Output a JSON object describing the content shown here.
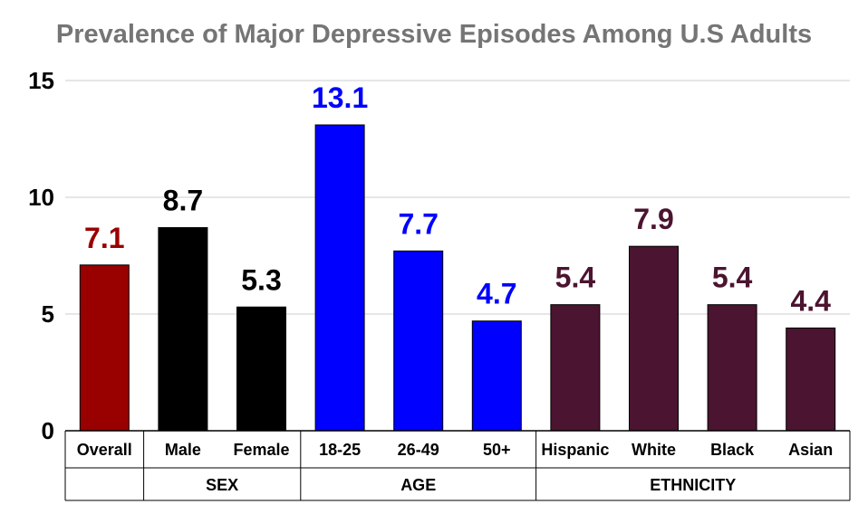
{
  "chart_data": {
    "type": "bar",
    "title": "Prevalence of Major Depressive Episodes Among U.S Adults",
    "ylim": [
      0,
      15
    ],
    "yticks": [
      0,
      5,
      10,
      15
    ],
    "grid": true,
    "categories": [
      "Overall",
      "Male",
      "Female",
      "18-25",
      "26-49",
      "50+",
      "Hispanic",
      "White",
      "Black",
      "Asian"
    ],
    "values": [
      7.1,
      8.7,
      5.3,
      13.1,
      7.7,
      4.7,
      5.4,
      7.9,
      5.4,
      4.4
    ],
    "data_labels": [
      "7.1",
      "8.7",
      "5.3",
      "13.1",
      "7.7",
      "4.7",
      "5.4",
      "7.9",
      "5.4",
      "4.4"
    ],
    "bar_colors": [
      "#990000",
      "#000000",
      "#000000",
      "#0000ff",
      "#0000ff",
      "#0000ff",
      "#4b1430",
      "#4b1430",
      "#4b1430",
      "#4b1430"
    ],
    "groups": [
      {
        "label": "",
        "start": 0,
        "end": 0
      },
      {
        "label": "SEX",
        "start": 1,
        "end": 2
      },
      {
        "label": "AGE",
        "start": 3,
        "end": 5
      },
      {
        "label": "ETHNICITY",
        "start": 6,
        "end": 9
      }
    ]
  }
}
